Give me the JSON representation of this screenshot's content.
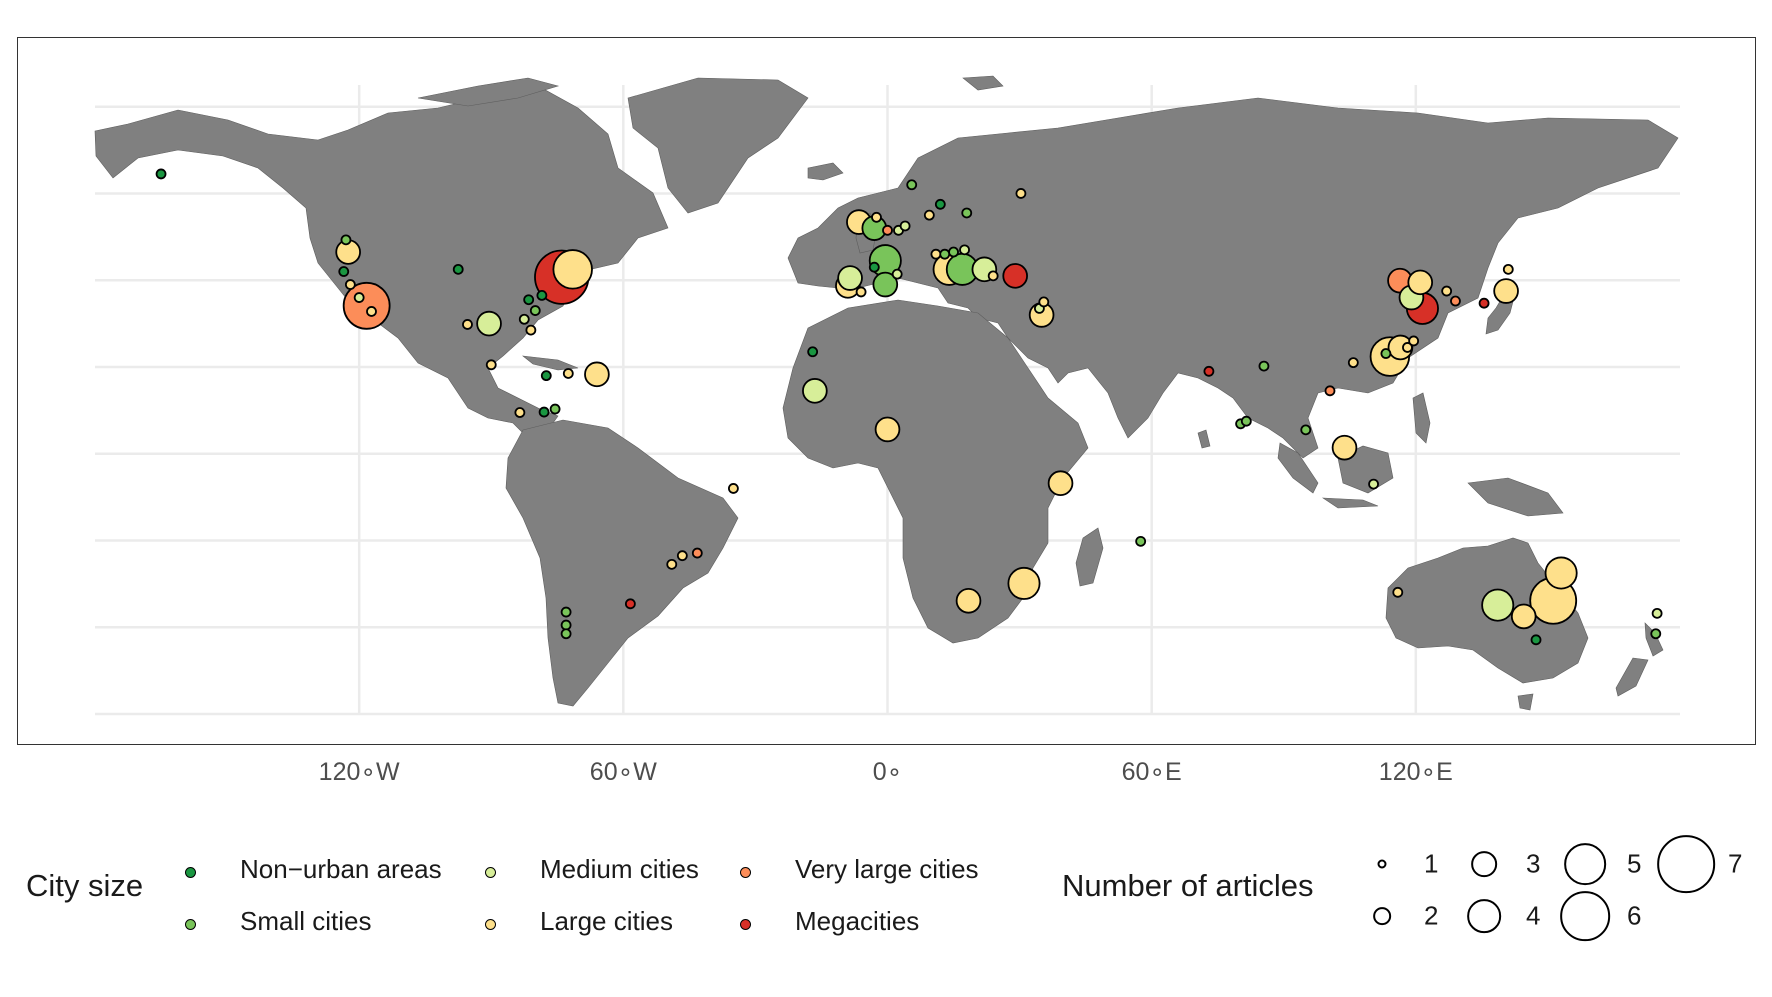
{
  "x_axis": {
    "ticks": [
      {
        "lon": -120,
        "label": "120∘W"
      },
      {
        "lon": -60,
        "label": "60∘W"
      },
      {
        "lon": 0,
        "label": "0∘"
      },
      {
        "lon": 60,
        "label": "60∘E"
      },
      {
        "lon": 120,
        "label": "120∘E"
      }
    ],
    "range": [
      -180,
      180
    ]
  },
  "y_axis": {
    "range": [
      -60,
      85
    ],
    "gridlines": [
      -60,
      -40,
      -20,
      0,
      20,
      40,
      60,
      80
    ]
  },
  "colors": {
    "land": "#808080",
    "land_border": "#5e5e5e",
    "grid": "#ebebeb",
    "Non-urban areas": "#1a9641",
    "Small cities": "#79c45a",
    "Medium cities": "#d7ee99",
    "Large cities": "#fee08b",
    "Very large cities": "#fc8d59",
    "Megacities": "#d73027"
  },
  "legend": {
    "color_title": "City size",
    "color_items": [
      {
        "label": "Non−urban areas",
        "key": "Non-urban areas"
      },
      {
        "label": "Small cities",
        "key": "Small cities"
      },
      {
        "label": "Medium cities",
        "key": "Medium cities"
      },
      {
        "label": "Large cities",
        "key": "Large cities"
      },
      {
        "label": "Very large cities",
        "key": "Very large cities"
      },
      {
        "label": "Megacities",
        "key": "Megacities"
      }
    ],
    "size_title": "Number of articles",
    "size_items": [
      "1",
      "2",
      "3",
      "4",
      "5",
      "6",
      "7"
    ]
  },
  "map_data": {
    "type": "bubble-map",
    "points": [
      {
        "lon": -165,
        "lat": 64.5,
        "size": 1,
        "cat": "Non-urban areas"
      },
      {
        "lon": -123,
        "lat": 49.3,
        "size": 1,
        "cat": "Small cities"
      },
      {
        "lon": -122.5,
        "lat": 46.5,
        "size": 3,
        "cat": "Large cities"
      },
      {
        "lon": -123.5,
        "lat": 42,
        "size": 1,
        "cat": "Non-urban areas"
      },
      {
        "lon": -122,
        "lat": 39,
        "size": 1,
        "cat": "Large cities"
      },
      {
        "lon": -120,
        "lat": 36,
        "size": 1,
        "cat": "Medium cities"
      },
      {
        "lon": -118.3,
        "lat": 34.1,
        "size": 6,
        "cat": "Very large cities"
      },
      {
        "lon": -117.2,
        "lat": 32.8,
        "size": 1,
        "cat": "Large cities"
      },
      {
        "lon": -97.5,
        "lat": 42.5,
        "size": 1,
        "cat": "Non-urban areas"
      },
      {
        "lon": -95.4,
        "lat": 29.8,
        "size": 1,
        "cat": "Large cities"
      },
      {
        "lon": -90.5,
        "lat": 30,
        "size": 3,
        "cat": "Medium cities"
      },
      {
        "lon": -90,
        "lat": 20.5,
        "size": 1,
        "cat": "Large cities"
      },
      {
        "lon": -81.5,
        "lat": 35.5,
        "size": 1,
        "cat": "Non-urban areas"
      },
      {
        "lon": -80,
        "lat": 33,
        "size": 1,
        "cat": "Small cities"
      },
      {
        "lon": -82.5,
        "lat": 31,
        "size": 1,
        "cat": "Medium cities"
      },
      {
        "lon": -81,
        "lat": 28.5,
        "size": 1,
        "cat": "Large cities"
      },
      {
        "lon": -78.5,
        "lat": 36.5,
        "size": 1,
        "cat": "Non-urban areas"
      },
      {
        "lon": -71.5,
        "lat": 42.5,
        "size": 5,
        "cat": "Large cities"
      },
      {
        "lon": -74,
        "lat": 40.7,
        "size": 7,
        "cat": "Megacities"
      },
      {
        "lon": -77.5,
        "lat": 18,
        "size": 1,
        "cat": "Non-urban areas"
      },
      {
        "lon": -72.5,
        "lat": 18.5,
        "size": 1,
        "cat": "Large cities"
      },
      {
        "lon": -66,
        "lat": 18.3,
        "size": 3,
        "cat": "Large cities"
      },
      {
        "lon": -83.5,
        "lat": 9.5,
        "size": 1,
        "cat": "Large cities"
      },
      {
        "lon": -78,
        "lat": 9.6,
        "size": 1,
        "cat": "Non-urban areas"
      },
      {
        "lon": -75.5,
        "lat": 10.3,
        "size": 1,
        "cat": "Small cities"
      },
      {
        "lon": -35,
        "lat": -8,
        "size": 1,
        "cat": "Large cities"
      },
      {
        "lon": -43.2,
        "lat": -22.9,
        "size": 1,
        "cat": "Very large cities"
      },
      {
        "lon": -46.6,
        "lat": -23.5,
        "size": 1,
        "cat": "Large cities"
      },
      {
        "lon": -49,
        "lat": -25.5,
        "size": 1,
        "cat": "Large cities"
      },
      {
        "lon": -58.4,
        "lat": -34.6,
        "size": 1,
        "cat": "Megacities"
      },
      {
        "lon": -73,
        "lat": -36.5,
        "size": 1,
        "cat": "Small cities"
      },
      {
        "lon": -73,
        "lat": -39.5,
        "size": 1,
        "cat": "Small cities"
      },
      {
        "lon": -73,
        "lat": -41.5,
        "size": 1,
        "cat": "Small cities"
      },
      {
        "lon": -17,
        "lat": 23.5,
        "size": 1,
        "cat": "Non-urban areas"
      },
      {
        "lon": -16.5,
        "lat": 14.5,
        "size": 3,
        "cat": "Medium cities"
      },
      {
        "lon": 0,
        "lat": 5.6,
        "size": 3,
        "cat": "Large cities"
      },
      {
        "lon": -9,
        "lat": 38.7,
        "size": 3,
        "cat": "Large cities"
      },
      {
        "lon": -8.5,
        "lat": 40.5,
        "size": 3,
        "cat": "Medium cities"
      },
      {
        "lon": -6,
        "lat": 37.3,
        "size": 1,
        "cat": "Large cities"
      },
      {
        "lon": -0.5,
        "lat": 39,
        "size": 3,
        "cat": "Small cities"
      },
      {
        "lon": 2.2,
        "lat": 41.4,
        "size": 1,
        "cat": "Medium cities"
      },
      {
        "lon": -0.5,
        "lat": 44.5,
        "size": 4,
        "cat": "Small cities"
      },
      {
        "lon": -3,
        "lat": 43,
        "size": 1,
        "cat": "Non-urban areas"
      },
      {
        "lon": -6.5,
        "lat": 53.4,
        "size": 3,
        "cat": "Large cities"
      },
      {
        "lon": -3,
        "lat": 52,
        "size": 3,
        "cat": "Small cities"
      },
      {
        "lon": -2.5,
        "lat": 54.5,
        "size": 1,
        "cat": "Large cities"
      },
      {
        "lon": 0,
        "lat": 51.5,
        "size": 1,
        "cat": "Very large cities"
      },
      {
        "lon": 2.5,
        "lat": 51.5,
        "size": 1,
        "cat": "Medium cities"
      },
      {
        "lon": 4,
        "lat": 52.5,
        "size": 1,
        "cat": "Medium cities"
      },
      {
        "lon": 5.5,
        "lat": 62,
        "size": 1,
        "cat": "Small cities"
      },
      {
        "lon": 12,
        "lat": 57.5,
        "size": 1,
        "cat": "Non-urban areas"
      },
      {
        "lon": 9.5,
        "lat": 55,
        "size": 1,
        "cat": "Large cities"
      },
      {
        "lon": 11,
        "lat": 46,
        "size": 1,
        "cat": "Large cities"
      },
      {
        "lon": 13,
        "lat": 46,
        "size": 1,
        "cat": "Small cities"
      },
      {
        "lon": 15,
        "lat": 46.5,
        "size": 1,
        "cat": "Small cities"
      },
      {
        "lon": 17.5,
        "lat": 47,
        "size": 1,
        "cat": "Medium cities"
      },
      {
        "lon": 18,
        "lat": 55.5,
        "size": 1,
        "cat": "Small cities"
      },
      {
        "lon": 30.3,
        "lat": 60,
        "size": 1,
        "cat": "Large cities"
      },
      {
        "lon": 14,
        "lat": 42.5,
        "size": 4,
        "cat": "Large cities"
      },
      {
        "lon": 17,
        "lat": 42.5,
        "size": 4,
        "cat": "Small cities"
      },
      {
        "lon": 22,
        "lat": 42.5,
        "size": 3,
        "cat": "Medium cities"
      },
      {
        "lon": 24,
        "lat": 41,
        "size": 1,
        "cat": "Large cities"
      },
      {
        "lon": 29,
        "lat": 41,
        "size": 3,
        "cat": "Megacities"
      },
      {
        "lon": 34.5,
        "lat": 33.5,
        "size": 1,
        "cat": "Medium cities"
      },
      {
        "lon": 35,
        "lat": 32,
        "size": 3,
        "cat": "Large cities"
      },
      {
        "lon": 35.5,
        "lat": 35,
        "size": 1,
        "cat": "Large cities"
      },
      {
        "lon": 39.3,
        "lat": -6.8,
        "size": 3,
        "cat": "Large cities"
      },
      {
        "lon": 57.5,
        "lat": -20.2,
        "size": 1,
        "cat": "Small cities"
      },
      {
        "lon": 18.4,
        "lat": -33.9,
        "size": 3,
        "cat": "Large cities"
      },
      {
        "lon": 31,
        "lat": -29.9,
        "size": 4,
        "cat": "Large cities"
      },
      {
        "lon": 73,
        "lat": 19,
        "size": 1,
        "cat": "Megacities"
      },
      {
        "lon": 80.2,
        "lat": 6.9,
        "size": 1,
        "cat": "Small cities"
      },
      {
        "lon": 81.5,
        "lat": 7.5,
        "size": 1,
        "cat": "Small cities"
      },
      {
        "lon": 85.5,
        "lat": 20.2,
        "size": 1,
        "cat": "Small cities"
      },
      {
        "lon": 95,
        "lat": 5.5,
        "size": 1,
        "cat": "Small cities"
      },
      {
        "lon": 100.5,
        "lat": 14.5,
        "size": 1,
        "cat": "Very large cities"
      },
      {
        "lon": 105.8,
        "lat": 21,
        "size": 1,
        "cat": "Large cities"
      },
      {
        "lon": 103.8,
        "lat": 1.4,
        "size": 3,
        "cat": "Large cities"
      },
      {
        "lon": 110.4,
        "lat": -7,
        "size": 1,
        "cat": "Medium cities"
      },
      {
        "lon": 113.2,
        "lat": 23.1,
        "size": 1,
        "cat": "Small cities"
      },
      {
        "lon": 114.1,
        "lat": 22.4,
        "size": 5,
        "cat": "Large cities"
      },
      {
        "lon": 116.5,
        "lat": 24.5,
        "size": 3,
        "cat": "Large cities"
      },
      {
        "lon": 118.1,
        "lat": 24.5,
        "size": 1,
        "cat": "Large cities"
      },
      {
        "lon": 119.5,
        "lat": 26,
        "size": 1,
        "cat": "Large cities"
      },
      {
        "lon": 116.4,
        "lat": 39.9,
        "size": 3,
        "cat": "Very large cities"
      },
      {
        "lon": 119,
        "lat": 36,
        "size": 3,
        "cat": "Medium cities"
      },
      {
        "lon": 121,
        "lat": 39.5,
        "size": 3,
        "cat": "Large cities"
      },
      {
        "lon": 121.5,
        "lat": 33.5,
        "size": 4,
        "cat": "Megacities"
      },
      {
        "lon": 127,
        "lat": 37.5,
        "size": 1,
        "cat": "Large cities"
      },
      {
        "lon": 129,
        "lat": 35.2,
        "size": 1,
        "cat": "Very large cities"
      },
      {
        "lon": 135.5,
        "lat": 34.7,
        "size": 1,
        "cat": "Megacities"
      },
      {
        "lon": 140.5,
        "lat": 37.5,
        "size": 3,
        "cat": "Large cities"
      },
      {
        "lon": 141,
        "lat": 42.5,
        "size": 1,
        "cat": "Large cities"
      },
      {
        "lon": 115.9,
        "lat": -31.95,
        "size": 1,
        "cat": "Large cities"
      },
      {
        "lon": 138.6,
        "lat": -34.9,
        "size": 4,
        "cat": "Medium cities"
      },
      {
        "lon": 144.5,
        "lat": -37.5,
        "size": 3,
        "cat": "Large cities"
      },
      {
        "lon": 151.2,
        "lat": -33.9,
        "size": 6,
        "cat": "Large cities"
      },
      {
        "lon": 153,
        "lat": -27.5,
        "size": 4,
        "cat": "Large cities"
      },
      {
        "lon": 147.3,
        "lat": -42.9,
        "size": 1,
        "cat": "Non-urban areas"
      },
      {
        "lon": 174.8,
        "lat": -36.8,
        "size": 1,
        "cat": "Medium cities"
      },
      {
        "lon": 174.5,
        "lat": -41.5,
        "size": 1,
        "cat": "Small cities"
      }
    ]
  }
}
